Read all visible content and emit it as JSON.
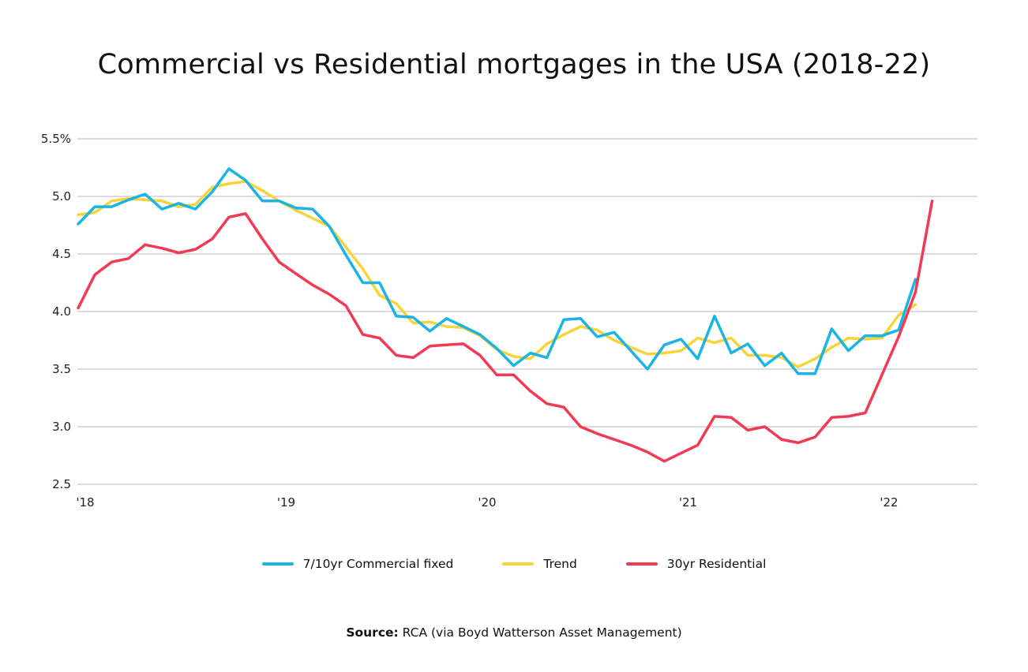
{
  "title": "Commercial vs Residential mortgages in the USA (2018-22)",
  "source": {
    "label": "Source:",
    "text": "RCA (via Boyd Watterson Asset Management)"
  },
  "chart_data": {
    "type": "line",
    "title": "Commercial vs Residential mortgages in the USA (2018-22)",
    "xlabel": "",
    "ylabel": "",
    "x_ticks": [
      "'18",
      "'19",
      "'20",
      "'21",
      "'22"
    ],
    "y_ticks": [
      "5.5%",
      "5.0",
      "4.5",
      "4.0",
      "3.5",
      "3.0",
      "2.5"
    ],
    "ylim": [
      2.5,
      5.5
    ],
    "grid": "horizontal",
    "legend": "bottom",
    "x_unit": "year",
    "series": [
      {
        "name": "7/10yr Commercial fixed",
        "color": "#1BB4E4",
        "points": [
          [
            2018.0,
            4.76
          ],
          [
            2018.083,
            4.91
          ],
          [
            2018.167,
            4.91
          ],
          [
            2018.25,
            4.97
          ],
          [
            2018.333,
            5.02
          ],
          [
            2018.417,
            4.89
          ],
          [
            2018.5,
            4.94
          ],
          [
            2018.583,
            4.89
          ],
          [
            2018.667,
            5.04
          ],
          [
            2018.75,
            5.24
          ],
          [
            2018.833,
            5.14
          ],
          [
            2018.917,
            4.96
          ],
          [
            2019.0,
            4.96
          ],
          [
            2019.083,
            4.9
          ],
          [
            2019.167,
            4.89
          ],
          [
            2019.25,
            4.74
          ],
          [
            2019.333,
            4.49
          ],
          [
            2019.417,
            4.25
          ],
          [
            2019.5,
            4.25
          ],
          [
            2019.583,
            3.96
          ],
          [
            2019.667,
            3.95
          ],
          [
            2019.75,
            3.83
          ],
          [
            2019.833,
            3.94
          ],
          [
            2019.917,
            3.87
          ],
          [
            2020.0,
            3.8
          ],
          [
            2020.083,
            3.68
          ],
          [
            2020.167,
            3.53
          ],
          [
            2020.25,
            3.64
          ],
          [
            2020.333,
            3.6
          ],
          [
            2020.417,
            3.93
          ],
          [
            2020.5,
            3.94
          ],
          [
            2020.583,
            3.78
          ],
          [
            2020.667,
            3.82
          ],
          [
            2020.75,
            3.66
          ],
          [
            2020.833,
            3.5
          ],
          [
            2020.917,
            3.71
          ],
          [
            2021.0,
            3.76
          ],
          [
            2021.083,
            3.59
          ],
          [
            2021.167,
            3.96
          ],
          [
            2021.25,
            3.64
          ],
          [
            2021.333,
            3.72
          ],
          [
            2021.417,
            3.53
          ],
          [
            2021.5,
            3.64
          ],
          [
            2021.583,
            3.46
          ],
          [
            2021.667,
            3.46
          ],
          [
            2021.75,
            3.85
          ],
          [
            2021.833,
            3.66
          ],
          [
            2021.917,
            3.79
          ],
          [
            2022.0,
            3.79
          ],
          [
            2022.083,
            3.84
          ],
          [
            2022.167,
            4.28
          ]
        ]
      },
      {
        "name": "Trend",
        "color": "#F8D33A",
        "points": [
          [
            2018.0,
            4.84
          ],
          [
            2018.083,
            4.86
          ],
          [
            2018.167,
            4.96
          ],
          [
            2018.25,
            4.98
          ],
          [
            2018.333,
            4.97
          ],
          [
            2018.417,
            4.96
          ],
          [
            2018.5,
            4.91
          ],
          [
            2018.583,
            4.93
          ],
          [
            2018.667,
            5.08
          ],
          [
            2018.75,
            5.11
          ],
          [
            2018.833,
            5.13
          ],
          [
            2018.917,
            5.05
          ],
          [
            2019.0,
            4.96
          ],
          [
            2019.083,
            4.88
          ],
          [
            2019.167,
            4.81
          ],
          [
            2019.25,
            4.74
          ],
          [
            2019.333,
            4.56
          ],
          [
            2019.417,
            4.37
          ],
          [
            2019.5,
            4.14
          ],
          [
            2019.583,
            4.07
          ],
          [
            2019.667,
            3.9
          ],
          [
            2019.75,
            3.91
          ],
          [
            2019.833,
            3.87
          ],
          [
            2019.917,
            3.86
          ],
          [
            2020.0,
            3.79
          ],
          [
            2020.083,
            3.67
          ],
          [
            2020.167,
            3.61
          ],
          [
            2020.25,
            3.59
          ],
          [
            2020.333,
            3.72
          ],
          [
            2020.417,
            3.8
          ],
          [
            2020.5,
            3.87
          ],
          [
            2020.583,
            3.84
          ],
          [
            2020.667,
            3.75
          ],
          [
            2020.75,
            3.69
          ],
          [
            2020.833,
            3.63
          ],
          [
            2020.917,
            3.64
          ],
          [
            2021.0,
            3.66
          ],
          [
            2021.083,
            3.77
          ],
          [
            2021.167,
            3.73
          ],
          [
            2021.25,
            3.77
          ],
          [
            2021.333,
            3.62
          ],
          [
            2021.417,
            3.62
          ],
          [
            2021.5,
            3.6
          ],
          [
            2021.583,
            3.52
          ],
          [
            2021.667,
            3.59
          ],
          [
            2021.75,
            3.69
          ],
          [
            2021.833,
            3.77
          ],
          [
            2021.917,
            3.76
          ],
          [
            2022.0,
            3.77
          ],
          [
            2022.083,
            3.97
          ],
          [
            2022.167,
            4.06
          ]
        ]
      },
      {
        "name": "30yr Residential",
        "color": "#F23A55",
        "points": [
          [
            2018.0,
            4.03
          ],
          [
            2018.083,
            4.32
          ],
          [
            2018.167,
            4.43
          ],
          [
            2018.25,
            4.46
          ],
          [
            2018.333,
            4.58
          ],
          [
            2018.417,
            4.55
          ],
          [
            2018.5,
            4.51
          ],
          [
            2018.583,
            4.54
          ],
          [
            2018.667,
            4.63
          ],
          [
            2018.75,
            4.82
          ],
          [
            2018.833,
            4.85
          ],
          [
            2018.917,
            4.63
          ],
          [
            2019.0,
            4.43
          ],
          [
            2019.083,
            4.33
          ],
          [
            2019.167,
            4.23
          ],
          [
            2019.25,
            4.15
          ],
          [
            2019.333,
            4.05
          ],
          [
            2019.417,
            3.8
          ],
          [
            2019.5,
            3.77
          ],
          [
            2019.583,
            3.62
          ],
          [
            2019.667,
            3.6
          ],
          [
            2019.75,
            3.7
          ],
          [
            2019.833,
            3.71
          ],
          [
            2019.917,
            3.72
          ],
          [
            2020.0,
            3.62
          ],
          [
            2020.083,
            3.45
          ],
          [
            2020.167,
            3.45
          ],
          [
            2020.25,
            3.31
          ],
          [
            2020.333,
            3.2
          ],
          [
            2020.417,
            3.17
          ],
          [
            2020.5,
            3.0
          ],
          [
            2020.583,
            2.94
          ],
          [
            2020.667,
            2.89
          ],
          [
            2020.75,
            2.84
          ],
          [
            2020.833,
            2.78
          ],
          [
            2020.917,
            2.7
          ],
          [
            2021.0,
            2.77
          ],
          [
            2021.083,
            2.84
          ],
          [
            2021.167,
            3.09
          ],
          [
            2021.25,
            3.08
          ],
          [
            2021.333,
            2.97
          ],
          [
            2021.417,
            3.0
          ],
          [
            2021.5,
            2.89
          ],
          [
            2021.583,
            2.86
          ],
          [
            2021.667,
            2.91
          ],
          [
            2021.75,
            3.08
          ],
          [
            2021.833,
            3.09
          ],
          [
            2021.917,
            3.12
          ],
          [
            2022.0,
            3.45
          ],
          [
            2022.083,
            3.78
          ],
          [
            2022.167,
            4.17
          ],
          [
            2022.25,
            4.96
          ]
        ]
      }
    ]
  }
}
